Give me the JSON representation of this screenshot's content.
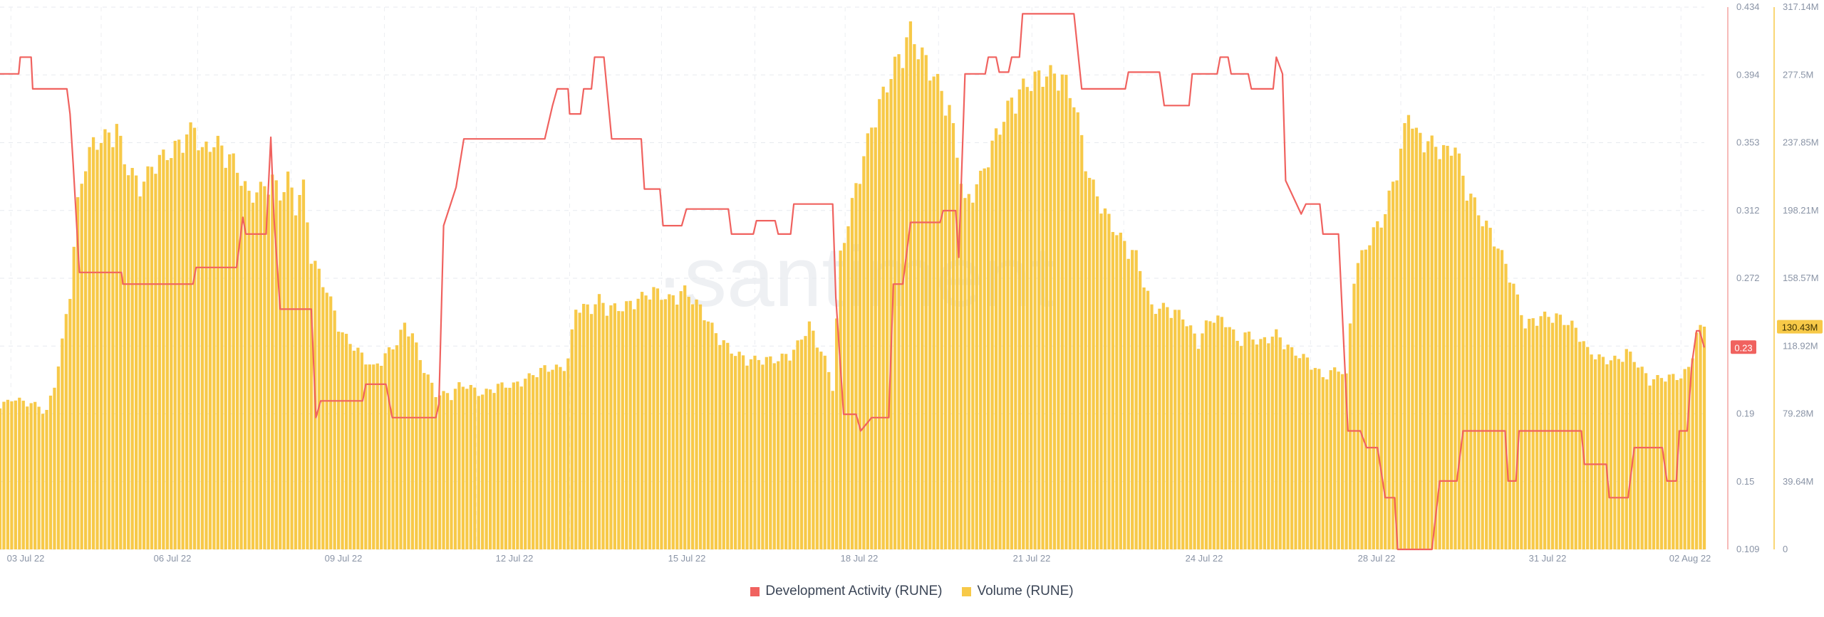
{
  "chart_data": {
    "type": "bar+line",
    "watermark": "·santiment",
    "x_ticks": [
      "03 Jul 22",
      "06 Jul 22",
      "09 Jul 22",
      "12 Jul 22",
      "15 Jul 22",
      "18 Jul 22",
      "21 Jul 22",
      "24 Jul 22",
      "28 Jul 22",
      "31 Jul 22",
      "02 Aug 22"
    ],
    "series": [
      {
        "name": "Development Activity (RUNE)",
        "color": "#f0625f",
        "axis": "left",
        "current_label": "0.23",
        "ylim": [
          0.109,
          0.434
        ],
        "y_ticks": [
          "0.434",
          "0.394",
          "0.353",
          "0.312",
          "0.272",
          "0.23",
          "0.19",
          "0.15",
          "0.109"
        ],
        "points": [
          [
            0,
            0.394
          ],
          [
            1.2,
            0.394
          ],
          [
            1.3,
            0.404
          ],
          [
            2.0,
            0.404
          ],
          [
            2.1,
            0.385
          ],
          [
            4.3,
            0.385
          ],
          [
            4.5,
            0.37
          ],
          [
            4.7,
            0.34
          ],
          [
            5.1,
            0.275
          ],
          [
            7.8,
            0.275
          ],
          [
            7.9,
            0.268
          ],
          [
            12.4,
            0.268
          ],
          [
            12.6,
            0.278
          ],
          [
            15.2,
            0.278
          ],
          [
            15.6,
            0.308
          ],
          [
            15.8,
            0.298
          ],
          [
            17.1,
            0.298
          ],
          [
            17.4,
            0.356
          ],
          [
            17.6,
            0.308
          ],
          [
            18.0,
            0.253
          ],
          [
            20.0,
            0.253
          ],
          [
            20.3,
            0.188
          ],
          [
            20.6,
            0.198
          ],
          [
            23.3,
            0.198
          ],
          [
            23.5,
            0.208
          ],
          [
            24.8,
            0.208
          ],
          [
            25.2,
            0.188
          ],
          [
            28.0,
            0.188
          ],
          [
            28.2,
            0.196
          ],
          [
            28.5,
            0.303
          ],
          [
            29.3,
            0.326
          ],
          [
            29.8,
            0.355
          ],
          [
            35.0,
            0.355
          ],
          [
            35.5,
            0.375
          ],
          [
            35.8,
            0.385
          ],
          [
            36.5,
            0.385
          ],
          [
            36.6,
            0.37
          ],
          [
            37.3,
            0.37
          ],
          [
            37.5,
            0.385
          ],
          [
            38.0,
            0.385
          ],
          [
            38.2,
            0.404
          ],
          [
            38.8,
            0.404
          ],
          [
            39.3,
            0.355
          ],
          [
            41.2,
            0.355
          ],
          [
            41.4,
            0.325
          ],
          [
            42.4,
            0.325
          ],
          [
            42.6,
            0.303
          ],
          [
            43.8,
            0.303
          ],
          [
            44.1,
            0.313
          ],
          [
            46.8,
            0.313
          ],
          [
            47.0,
            0.298
          ],
          [
            48.4,
            0.298
          ],
          [
            48.6,
            0.306
          ],
          [
            49.8,
            0.306
          ],
          [
            50.0,
            0.298
          ],
          [
            50.8,
            0.298
          ],
          [
            51.0,
            0.316
          ],
          [
            53.5,
            0.316
          ],
          [
            53.7,
            0.26
          ],
          [
            54.2,
            0.19
          ],
          [
            55.0,
            0.19
          ],
          [
            55.3,
            0.18
          ],
          [
            56.0,
            0.188
          ],
          [
            57.1,
            0.188
          ],
          [
            57.4,
            0.268
          ],
          [
            58.0,
            0.268
          ],
          [
            58.5,
            0.305
          ],
          [
            60.4,
            0.305
          ],
          [
            60.6,
            0.312
          ],
          [
            61.4,
            0.312
          ],
          [
            61.6,
            0.284
          ],
          [
            62.0,
            0.394
          ],
          [
            63.3,
            0.394
          ],
          [
            63.5,
            0.404
          ],
          [
            64.0,
            0.404
          ],
          [
            64.2,
            0.395
          ],
          [
            64.8,
            0.395
          ],
          [
            65.0,
            0.404
          ],
          [
            65.5,
            0.404
          ],
          [
            65.7,
            0.43
          ],
          [
            69.0,
            0.43
          ],
          [
            69.5,
            0.385
          ],
          [
            72.3,
            0.385
          ],
          [
            72.5,
            0.395
          ],
          [
            74.5,
            0.395
          ],
          [
            74.8,
            0.375
          ],
          [
            76.4,
            0.375
          ],
          [
            76.6,
            0.394
          ],
          [
            78.2,
            0.394
          ],
          [
            78.4,
            0.404
          ],
          [
            78.9,
            0.404
          ],
          [
            79.1,
            0.394
          ],
          [
            80.2,
            0.394
          ],
          [
            80.4,
            0.385
          ],
          [
            81.8,
            0.385
          ],
          [
            82.0,
            0.404
          ],
          [
            82.4,
            0.394
          ],
          [
            82.6,
            0.33
          ],
          [
            83.6,
            0.31
          ],
          [
            83.9,
            0.316
          ],
          [
            84.8,
            0.316
          ],
          [
            85.0,
            0.298
          ],
          [
            86.0,
            0.298
          ],
          [
            86.6,
            0.18
          ],
          [
            87.4,
            0.18
          ],
          [
            87.8,
            0.17
          ],
          [
            88.5,
            0.17
          ],
          [
            89.0,
            0.14
          ],
          [
            89.6,
            0.14
          ],
          [
            89.8,
            0.109
          ],
          [
            92.0,
            0.109
          ],
          [
            92.5,
            0.15
          ],
          [
            93.6,
            0.15
          ],
          [
            94.0,
            0.18
          ],
          [
            96.7,
            0.18
          ],
          [
            96.9,
            0.15
          ],
          [
            97.4,
            0.15
          ],
          [
            97.6,
            0.18
          ],
          [
            101.6,
            0.18
          ],
          [
            101.8,
            0.16
          ],
          [
            103.2,
            0.16
          ],
          [
            103.4,
            0.14
          ],
          [
            104.6,
            0.14
          ],
          [
            105.0,
            0.17
          ],
          [
            106.8,
            0.17
          ],
          [
            107.1,
            0.15
          ],
          [
            107.7,
            0.15
          ],
          [
            107.9,
            0.18
          ],
          [
            108.4,
            0.18
          ],
          [
            108.7,
            0.22
          ],
          [
            109.0,
            0.24
          ],
          [
            109.2,
            0.24
          ],
          [
            109.5,
            0.23
          ]
        ]
      },
      {
        "name": "Volume (RUNE)",
        "color": "#f7c948",
        "axis": "right",
        "current_label": "130.43M",
        "ylim": [
          0,
          317.14
        ],
        "y_ticks": [
          "317.14M",
          "277.5M",
          "237.85M",
          "198.21M",
          "158.57M",
          "118.92M",
          "79.28M",
          "39.64M",
          "0"
        ],
        "points": [
          [
            0,
            85
          ],
          [
            0.5,
            85
          ],
          [
            1.0,
            88
          ],
          [
            1.5,
            85
          ],
          [
            2.0,
            85
          ],
          [
            3.0,
            80
          ],
          [
            3.5,
            95
          ],
          [
            4.0,
            120
          ],
          [
            4.5,
            150
          ],
          [
            5.0,
            200
          ],
          [
            5.5,
            225
          ],
          [
            6.0,
            235
          ],
          [
            7.0,
            240
          ],
          [
            7.5,
            245
          ],
          [
            8.0,
            225
          ],
          [
            9.0,
            210
          ],
          [
            10.0,
            225
          ],
          [
            11.0,
            230
          ],
          [
            12.0,
            240
          ],
          [
            12.5,
            245
          ],
          [
            13.0,
            230
          ],
          [
            13.5,
            235
          ],
          [
            14.0,
            235
          ],
          [
            15.0,
            225
          ],
          [
            16.0,
            205
          ],
          [
            17.0,
            210
          ],
          [
            17.5,
            215
          ],
          [
            18.0,
            205
          ],
          [
            18.5,
            215
          ],
          [
            19.0,
            200
          ],
          [
            19.5,
            210
          ],
          [
            20.0,
            170
          ],
          [
            21.0,
            150
          ],
          [
            22.0,
            125
          ],
          [
            23.0,
            115
          ],
          [
            24.0,
            105
          ],
          [
            25.0,
            115
          ],
          [
            25.5,
            120
          ],
          [
            26.0,
            130
          ],
          [
            26.5,
            125
          ],
          [
            27.0,
            110
          ],
          [
            27.5,
            100
          ],
          [
            28.0,
            90
          ],
          [
            29.0,
            90
          ],
          [
            29.5,
            95
          ],
          [
            30.0,
            95
          ],
          [
            31.0,
            90
          ],
          [
            32.0,
            95
          ],
          [
            33.0,
            95
          ],
          [
            34.0,
            100
          ],
          [
            35.0,
            105
          ],
          [
            36.0,
            105
          ],
          [
            36.5,
            110
          ],
          [
            37.0,
            140
          ],
          [
            38.0,
            140
          ],
          [
            38.5,
            145
          ],
          [
            39.0,
            140
          ],
          [
            40.0,
            140
          ],
          [
            41.0,
            145
          ],
          [
            42.0,
            150
          ],
          [
            43.0,
            145
          ],
          [
            44.0,
            150
          ],
          [
            45.0,
            140
          ],
          [
            46.0,
            125
          ],
          [
            47.0,
            115
          ],
          [
            48.0,
            110
          ],
          [
            49.0,
            110
          ],
          [
            50.0,
            110
          ],
          [
            51.0,
            115
          ],
          [
            52.0,
            130
          ],
          [
            52.5,
            120
          ],
          [
            53.0,
            110
          ],
          [
            53.5,
            95
          ],
          [
            54.0,
            170
          ],
          [
            55.0,
            210
          ],
          [
            56.0,
            245
          ],
          [
            57.0,
            270
          ],
          [
            58.0,
            290
          ],
          [
            58.5,
            300
          ],
          [
            59.0,
            290
          ],
          [
            60.0,
            275
          ],
          [
            61.0,
            255
          ],
          [
            61.5,
            230
          ],
          [
            62.0,
            200
          ],
          [
            63.0,
            215
          ],
          [
            64.0,
            240
          ],
          [
            65.0,
            260
          ],
          [
            66.0,
            270
          ],
          [
            67.0,
            275
          ],
          [
            68.0,
            275
          ],
          [
            68.5,
            270
          ],
          [
            69.0,
            260
          ],
          [
            70.0,
            215
          ],
          [
            71.0,
            195
          ],
          [
            72.0,
            180
          ],
          [
            73.0,
            170
          ],
          [
            74.0,
            140
          ],
          [
            75.0,
            140
          ],
          [
            76.0,
            135
          ],
          [
            77.0,
            120
          ],
          [
            77.5,
            130
          ],
          [
            78.0,
            135
          ],
          [
            79.0,
            130
          ],
          [
            79.5,
            120
          ],
          [
            80.0,
            125
          ],
          [
            81.0,
            120
          ],
          [
            82.0,
            125
          ],
          [
            83.0,
            115
          ],
          [
            84.0,
            110
          ],
          [
            85.0,
            100
          ],
          [
            86.0,
            105
          ],
          [
            86.5,
            100
          ],
          [
            87.0,
            160
          ],
          [
            88.0,
            180
          ],
          [
            89.0,
            195
          ],
          [
            90.0,
            230
          ],
          [
            90.5,
            255
          ],
          [
            91.0,
            240
          ],
          [
            92.0,
            235
          ],
          [
            93.0,
            230
          ],
          [
            93.5,
            235
          ],
          [
            94.0,
            215
          ],
          [
            95.0,
            195
          ],
          [
            96.0,
            180
          ],
          [
            97.0,
            160
          ],
          [
            98.0,
            130
          ],
          [
            99.0,
            135
          ],
          [
            100.0,
            135
          ],
          [
            101.0,
            130
          ],
          [
            101.5,
            125
          ],
          [
            102.0,
            115
          ],
          [
            103.0,
            110
          ],
          [
            104.0,
            110
          ],
          [
            104.5,
            115
          ],
          [
            105.0,
            110
          ],
          [
            106.0,
            98
          ],
          [
            107.0,
            100
          ],
          [
            108.0,
            100
          ],
          [
            108.5,
            105
          ],
          [
            109.0,
            125
          ],
          [
            109.5,
            130
          ]
        ]
      }
    ]
  },
  "legend": [
    {
      "label": "Development Activity (RUNE)",
      "color": "#f0625f"
    },
    {
      "label": "Volume (RUNE)",
      "color": "#f7c948"
    }
  ]
}
